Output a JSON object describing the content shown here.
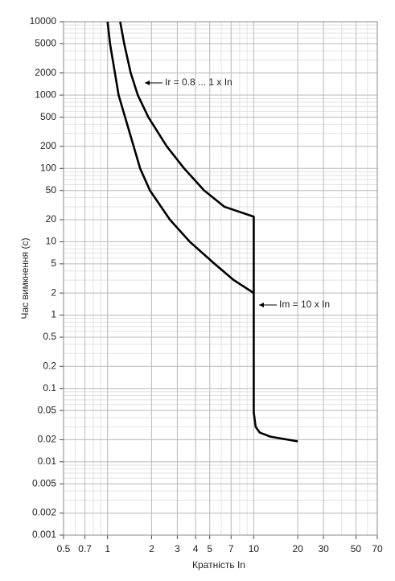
{
  "chart_data": {
    "type": "line",
    "xlabel": "Кратність In",
    "ylabel": "Час вимкнення (с)",
    "xscale": "log",
    "yscale": "log",
    "xlim": [
      0.5,
      70
    ],
    "ylim": [
      0.001,
      10000
    ],
    "xticks": [
      0.5,
      0.7,
      1,
      2,
      3,
      4,
      5,
      7,
      10,
      20,
      30,
      50,
      70
    ],
    "yticks": [
      10000,
      5000,
      2000,
      1000,
      500,
      200,
      100,
      50,
      20,
      10,
      5,
      2,
      1,
      0.5,
      0.2,
      0.1,
      0.05,
      0.02,
      0.01,
      0.005,
      0.002,
      0.001
    ],
    "grid": true,
    "minor_grid": true,
    "series": [
      {
        "color": "#000000",
        "x": [
          1.22,
          1.3,
          1.44,
          1.61,
          1.9,
          2.54,
          3.34,
          4.58,
          6.3,
          10,
          10,
          10.3,
          11,
          13,
          20
        ],
        "values": [
          10000,
          5000,
          2000,
          1000,
          500,
          200,
          100,
          50,
          30,
          22,
          0.047,
          0.03,
          0.025,
          0.022,
          0.019
        ]
      },
      {
        "color": "#000000",
        "x": [
          1.0,
          1.04,
          1.19,
          1.67,
          1.95,
          2.67,
          3.65,
          5.4,
          7.3,
          10
        ],
        "values": [
          10000,
          5000,
          1000,
          100,
          50,
          20,
          10,
          5,
          3,
          2
        ]
      }
    ],
    "annotations": [
      "Ir = 0.8 ... 1 x In",
      "Im = 10 x In"
    ]
  }
}
